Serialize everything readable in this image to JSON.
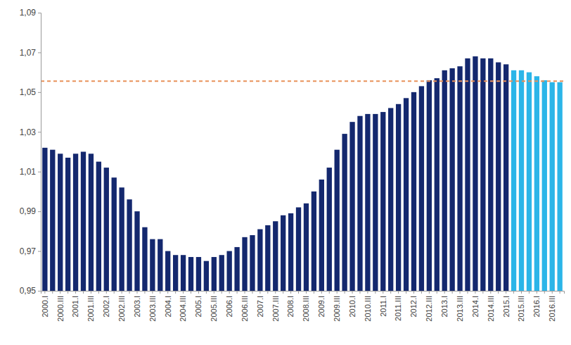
{
  "chart_data": {
    "type": "bar",
    "categories": [
      "2000.I",
      null,
      "2000.III",
      null,
      "2001.I",
      null,
      "2001.III",
      null,
      "2002.I",
      null,
      "2002.III",
      null,
      "2003.I",
      null,
      "2003.III",
      null,
      "2004.I",
      null,
      "2004.III",
      null,
      "2005.I",
      null,
      "2005.III",
      null,
      "2006.I",
      null,
      "2006.III",
      null,
      "2007.I",
      null,
      "2007.III",
      null,
      "2008.I",
      null,
      "2008.III",
      null,
      "2009.I",
      null,
      "2009.III",
      null,
      "2010.I",
      null,
      "2010.III",
      null,
      "2011.I",
      null,
      "2011.III",
      null,
      "2012.I",
      null,
      "2012.III",
      null,
      "2013.I",
      null,
      "2013.III",
      null,
      "2014.I",
      null,
      "2014.III",
      null,
      "2015.I",
      null,
      "2015.III",
      null,
      "2016.I",
      null,
      "2016.III",
      null
    ],
    "values": [
      1.022,
      1.021,
      1.019,
      1.017,
      1.019,
      1.02,
      1.019,
      1.015,
      1.012,
      1.007,
      1.002,
      0.996,
      0.99,
      0.982,
      0.976,
      0.976,
      0.97,
      0.968,
      0.968,
      0.967,
      0.967,
      0.965,
      0.967,
      0.968,
      0.97,
      0.972,
      0.977,
      0.978,
      0.981,
      0.983,
      0.985,
      0.988,
      0.989,
      0.992,
      0.994,
      1.0,
      1.006,
      1.012,
      1.021,
      1.029,
      1.035,
      1.038,
      1.039,
      1.039,
      1.04,
      1.042,
      1.044,
      1.047,
      1.05,
      1.053,
      1.056,
      1.057,
      1.061,
      1.062,
      1.063,
      1.067,
      1.068,
      1.067,
      1.067,
      1.065,
      1.064,
      1.061,
      1.061,
      1.06,
      1.058,
      1.056,
      1.055,
      1.055
    ],
    "colors": [
      "#14286e",
      "#14286e",
      "#14286e",
      "#14286e",
      "#14286e",
      "#14286e",
      "#14286e",
      "#14286e",
      "#14286e",
      "#14286e",
      "#14286e",
      "#14286e",
      "#14286e",
      "#14286e",
      "#14286e",
      "#14286e",
      "#14286e",
      "#14286e",
      "#14286e",
      "#14286e",
      "#14286e",
      "#14286e",
      "#14286e",
      "#14286e",
      "#14286e",
      "#14286e",
      "#14286e",
      "#14286e",
      "#14286e",
      "#14286e",
      "#14286e",
      "#14286e",
      "#14286e",
      "#14286e",
      "#14286e",
      "#14286e",
      "#14286e",
      "#14286e",
      "#14286e",
      "#14286e",
      "#14286e",
      "#14286e",
      "#14286e",
      "#14286e",
      "#14286e",
      "#14286e",
      "#14286e",
      "#14286e",
      "#14286e",
      "#14286e",
      "#14286e",
      "#14286e",
      "#14286e",
      "#14286e",
      "#14286e",
      "#14286e",
      "#14286e",
      "#14286e",
      "#14286e",
      "#14286e",
      "#14286e",
      "#2bb5e8",
      "#2bb5e8",
      "#2bb5e8",
      "#2bb5e8",
      "#2bb5e8",
      "#2bb5e8",
      "#2bb5e8"
    ],
    "ylim": [
      0.95,
      1.09
    ],
    "yticks": [
      {
        "value": 0.95,
        "label": "0,95"
      },
      {
        "value": 0.97,
        "label": "0,97"
      },
      {
        "value": 0.99,
        "label": "0,99"
      },
      {
        "value": 1.01,
        "label": "1,01"
      },
      {
        "value": 1.03,
        "label": "1,03"
      },
      {
        "value": 1.05,
        "label": "1,05"
      },
      {
        "value": 1.07,
        "label": "1,07"
      },
      {
        "value": 1.09,
        "label": "1,09"
      }
    ],
    "reference_line": 1.0555,
    "grid": false
  }
}
